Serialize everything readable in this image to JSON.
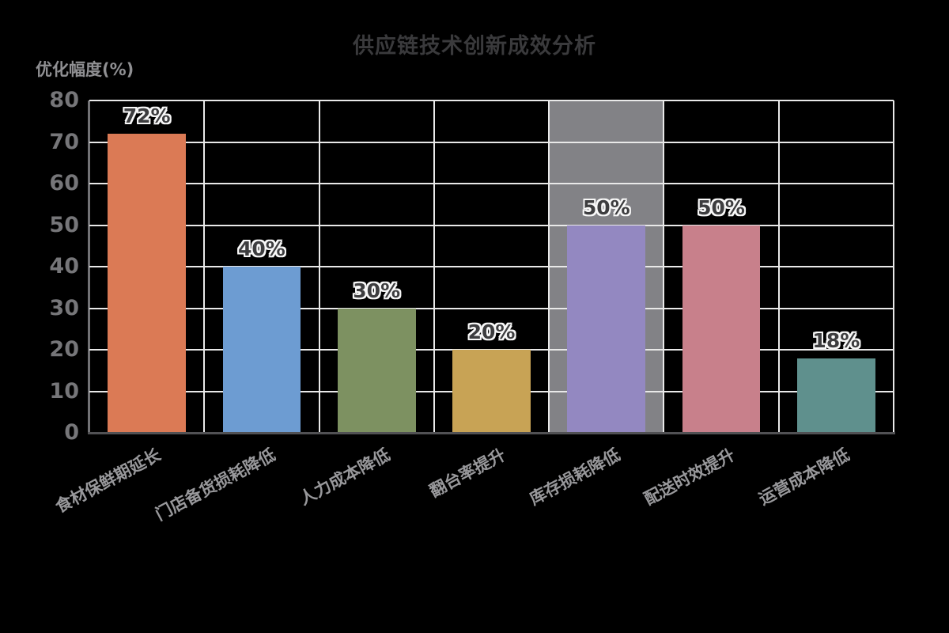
{
  "chart_data": {
    "type": "bar",
    "title": "供应链技术创新成效分析",
    "ylabel": "优化幅度(%)",
    "xlabel": "",
    "categories": [
      "食材保鲜期延长",
      "门店备货损耗降低",
      "人力成本降低",
      "翻台率提升",
      "库存损耗降低",
      "配送时效提升",
      "运营成本降低"
    ],
    "values": [
      72,
      40,
      30,
      20,
      50,
      50,
      18
    ],
    "value_labels": [
      "72%",
      "40%",
      "30%",
      "20%",
      "50%",
      "50%",
      "18%"
    ],
    "bar_colors": [
      "#db7a55",
      "#6d9cd2",
      "#7d9161",
      "#c8a355",
      "#9388c1",
      "#c8808b",
      "#5f908d"
    ],
    "ylim": [
      0,
      80
    ],
    "yticks": [
      0,
      10,
      20,
      30,
      40,
      50,
      60,
      70,
      80
    ],
    "grid": true,
    "legend_position": "none",
    "highlight_column": {
      "index": 4,
      "color": "#828286"
    },
    "background_color": "#000000",
    "gridline_color": "#e9e9e9",
    "text_color": "#8f8f92"
  }
}
